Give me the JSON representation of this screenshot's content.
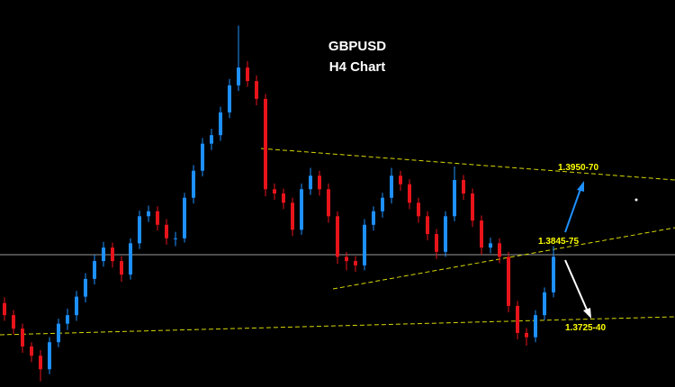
{
  "chart_data": {
    "type": "candlestick",
    "title": "GBPUSD",
    "subtitle": "H4 Chart",
    "annotations": [
      "1.3950-70",
      "1.3845-75",
      "1.3725-40"
    ],
    "up_color": "#1e90ff",
    "down_color": "#e8141b",
    "ylim": [
      1.3642,
      1.4186
    ],
    "open": [
      1.376,
      1.3743,
      1.3724,
      1.3699,
      1.3686,
      1.3667,
      1.3705,
      1.3731,
      1.3743,
      1.3769,
      1.3794,
      1.3819,
      1.3838,
      1.3819,
      1.38,
      1.3844,
      1.3882,
      1.3889,
      1.387,
      1.3851,
      1.3851,
      1.3908,
      1.3946,
      1.3984,
      1.3996,
      1.4028,
      1.4066,
      1.4091,
      1.4072,
      1.4047,
      1.392,
      1.3914,
      1.3901,
      1.3863,
      1.392,
      1.3939,
      1.392,
      1.3882,
      1.3825,
      1.3819,
      1.3813,
      1.387,
      1.3889,
      1.3908,
      1.3939,
      1.3927,
      1.3901,
      1.3882,
      1.3857,
      1.3832,
      1.3882,
      1.3933,
      1.3914,
      1.3876,
      1.3838,
      1.3844,
      1.3825,
      1.3756,
      1.3718,
      1.3712,
      1.3743,
      1.3775
    ],
    "high": [
      1.3768,
      1.375,
      1.3731,
      1.3705,
      1.3694,
      1.3712,
      1.3738,
      1.3752,
      1.3777,
      1.3802,
      1.3828,
      1.3846,
      1.3845,
      1.3826,
      1.3851,
      1.389,
      1.3897,
      1.3896,
      1.3878,
      1.386,
      1.3915,
      1.3954,
      1.3992,
      1.4005,
      1.4036,
      1.4075,
      1.415,
      1.41,
      1.408,
      1.4054,
      1.3928,
      1.3921,
      1.3908,
      1.3928,
      1.395,
      1.3946,
      1.3928,
      1.3889,
      1.3832,
      1.3826,
      1.3878,
      1.3896,
      1.3915,
      1.395,
      1.3946,
      1.3934,
      1.3908,
      1.3889,
      1.3864,
      1.3889,
      1.3952,
      1.394,
      1.3921,
      1.3883,
      1.3852,
      1.3851,
      1.3832,
      1.3763,
      1.3725,
      1.375,
      1.3782,
      1.384
    ],
    "low": [
      1.3735,
      1.3716,
      1.369,
      1.3677,
      1.365,
      1.366,
      1.3698,
      1.3722,
      1.3735,
      1.3761,
      1.3786,
      1.3811,
      1.381,
      1.379,
      1.3793,
      1.3836,
      1.3874,
      1.3862,
      1.3842,
      1.384,
      1.3845,
      1.39,
      1.3938,
      1.3975,
      1.3988,
      1.402,
      1.4058,
      1.4064,
      1.4038,
      1.391,
      1.3905,
      1.3892,
      1.3854,
      1.3856,
      1.3912,
      1.3911,
      1.3873,
      1.3815,
      1.3806,
      1.3804,
      1.3806,
      1.3862,
      1.388,
      1.39,
      1.3918,
      1.3892,
      1.3873,
      1.3848,
      1.3822,
      1.3825,
      1.3875,
      1.3905,
      1.3867,
      1.3828,
      1.383,
      1.3816,
      1.3747,
      1.3709,
      1.37,
      1.3705,
      1.3736,
      1.3768
    ],
    "close": [
      1.3743,
      1.3724,
      1.3699,
      1.3686,
      1.3667,
      1.3705,
      1.3731,
      1.3743,
      1.3769,
      1.3794,
      1.3819,
      1.3838,
      1.3819,
      1.38,
      1.3844,
      1.3882,
      1.3889,
      1.387,
      1.3851,
      1.3851,
      1.3908,
      1.3946,
      1.3984,
      1.3996,
      1.4028,
      1.4066,
      1.4091,
      1.4072,
      1.4047,
      1.392,
      1.3914,
      1.3901,
      1.3863,
      1.392,
      1.3939,
      1.392,
      1.3882,
      1.3825,
      1.3819,
      1.3813,
      1.387,
      1.3889,
      1.3908,
      1.3939,
      1.3927,
      1.3901,
      1.3882,
      1.3857,
      1.3832,
      1.3882,
      1.3933,
      1.3914,
      1.3876,
      1.3838,
      1.3844,
      1.3825,
      1.3756,
      1.3718,
      1.3712,
      1.3743,
      1.3775,
      1.3825
    ]
  }
}
